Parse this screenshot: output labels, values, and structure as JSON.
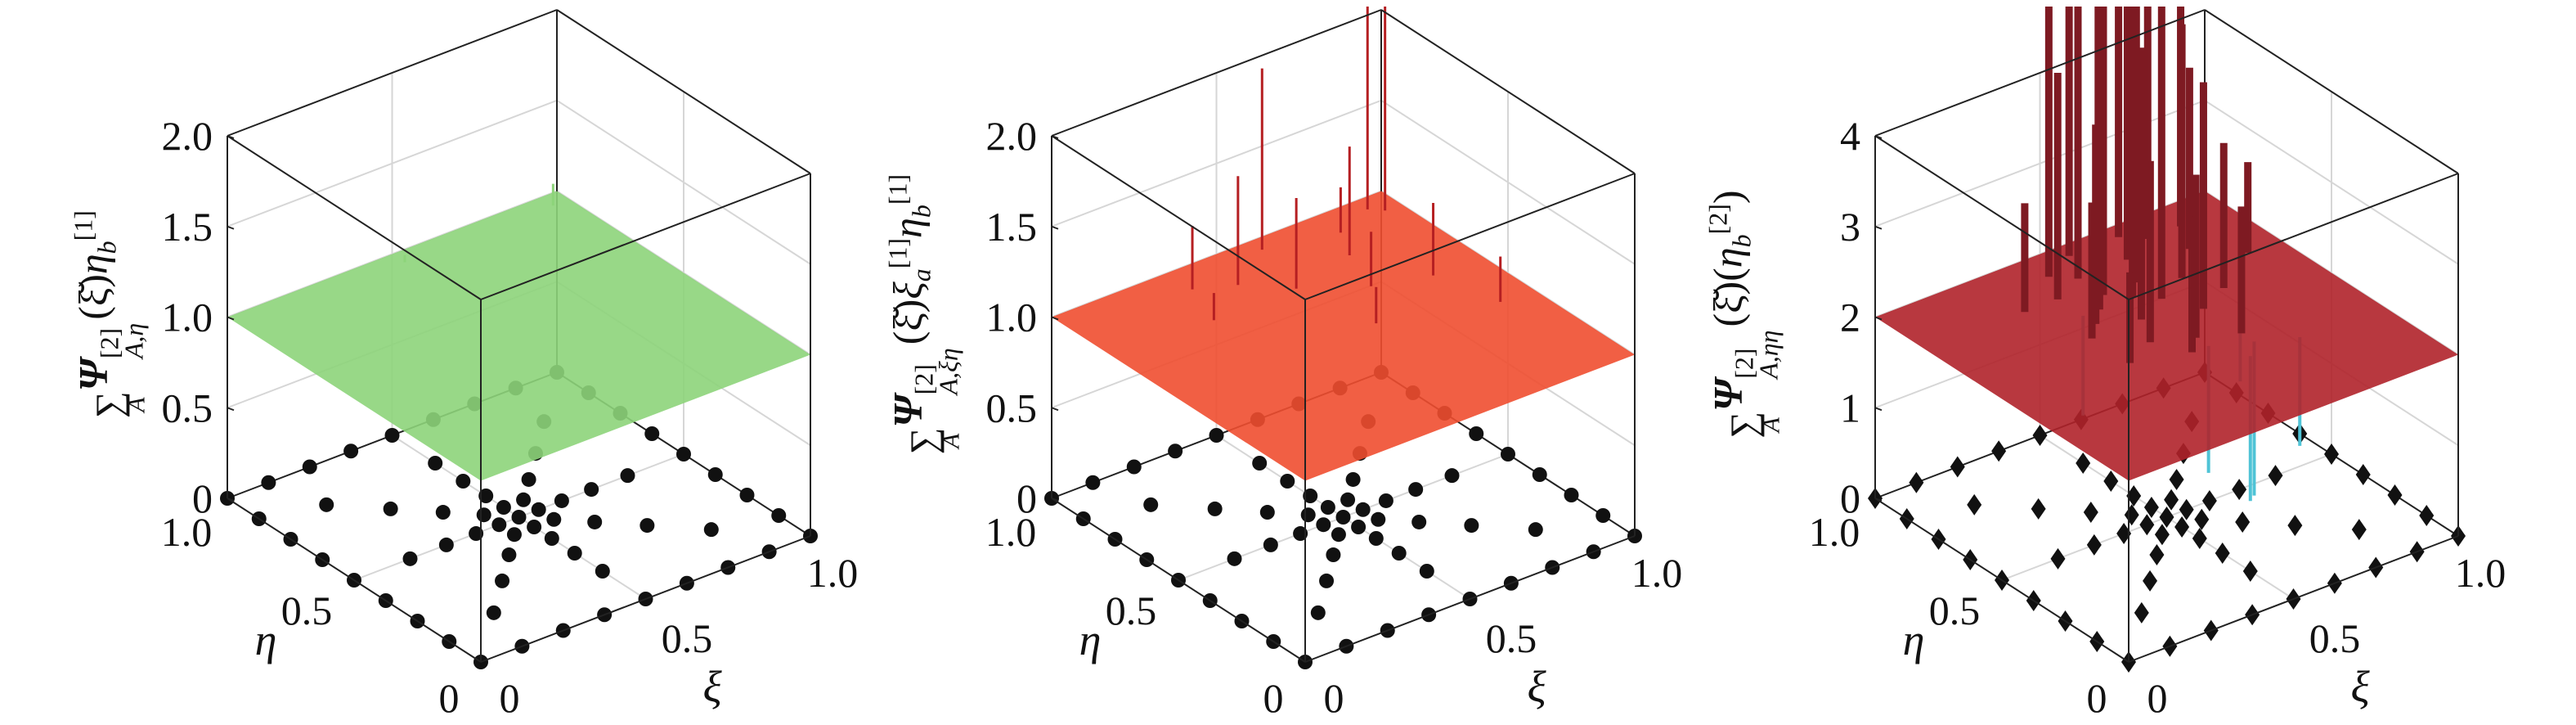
{
  "chart_data": [
    {
      "type": "surface3d",
      "ylabel": {
        "sum": "∑",
        "sum_sub": "A",
        "psi": "Ψ",
        "psi_sup": "[2]",
        "psi_sub": "A,η",
        "tail": [
          {
            "t": "(ξ̆)",
            "style": ""
          },
          {
            "t": "η",
            "style": "it"
          },
          {
            "t": "b",
            "style": "sub"
          },
          {
            "t": "[1]",
            "style": "sup"
          }
        ]
      },
      "xlabel": "ξ",
      "eta_label": "η",
      "xi_ticks": [
        "0",
        "0.5",
        "1.0"
      ],
      "eta_ticks": [
        "0",
        "0.5",
        "1.0"
      ],
      "z_ticks": [
        "0",
        "0.5",
        "1.0",
        "1.5",
        "2.0"
      ],
      "z_tick_values": [
        0,
        0.5,
        1.0,
        1.5,
        2.0
      ],
      "zlim": [
        0,
        2
      ],
      "xlim": [
        0,
        1
      ],
      "ylim": [
        0,
        1
      ],
      "surface_level": 1.0,
      "surface_color": "#8dd47a",
      "spike_color": "#8dd47a",
      "marker": "circle",
      "spikes": [
        [
          0.95,
          0.95,
          1.12
        ],
        [
          0.5,
          0.95,
          1.04
        ]
      ],
      "dips": []
    },
    {
      "type": "surface3d",
      "ylabel": {
        "sum": "∑",
        "sum_sub": "A",
        "psi": "Ψ",
        "psi_sup": "[2]",
        "psi_sub": "A,ξη",
        "tail": [
          {
            "t": "(ξ̆)",
            "style": ""
          },
          {
            "t": "ξ",
            "style": "it"
          },
          {
            "t": "a",
            "style": "sub"
          },
          {
            "t": "[1]",
            "style": "sup"
          },
          {
            "t": "η",
            "style": "it"
          },
          {
            "t": "b",
            "style": "sub"
          },
          {
            "t": "[1]",
            "style": "sup"
          }
        ]
      },
      "xlabel": "ξ",
      "eta_label": "η",
      "xi_ticks": [
        "0",
        "0.5",
        "1.0"
      ],
      "eta_ticks": [
        "0",
        "0.5",
        "1.0"
      ],
      "z_ticks": [
        "0",
        "0.5",
        "1.0",
        "1.5",
        "2.0"
      ],
      "z_tick_values": [
        0,
        0.5,
        1.0,
        1.5,
        2.0
      ],
      "zlim": [
        0,
        2
      ],
      "xlim": [
        0,
        1
      ],
      "ylim": [
        0,
        1
      ],
      "surface_level": 1.0,
      "surface_color": "#f04e30",
      "spike_color": "#b51f22",
      "marker": "circle",
      "spikes": [
        [
          0.92,
          0.95,
          2.3
        ],
        [
          0.95,
          0.92,
          2.2
        ],
        [
          0.6,
          0.95,
          2.0
        ],
        [
          0.35,
          0.9,
          1.35
        ],
        [
          0.45,
          0.85,
          1.6
        ],
        [
          0.55,
          0.75,
          1.5
        ],
        [
          0.75,
          0.8,
          1.6
        ],
        [
          0.85,
          0.6,
          1.4
        ],
        [
          0.9,
          0.4,
          1.25
        ],
        [
          0.6,
          0.5,
          1.2
        ],
        [
          0.3,
          0.75,
          1.15
        ],
        [
          0.7,
          0.65,
          1.3
        ],
        [
          0.8,
          0.9,
          1.25
        ]
      ],
      "dips": []
    },
    {
      "type": "surface3d",
      "ylabel": {
        "sum": "∑",
        "sum_sub": "A",
        "psi": "Ψ",
        "psi_sup": "[2]",
        "psi_sub": "A,ηη",
        "tail": [
          {
            "t": "(ξ̆)(",
            "style": ""
          },
          {
            "t": "η",
            "style": "it"
          },
          {
            "t": "b",
            "style": "sub"
          },
          {
            "t": "[2]",
            "style": "sup"
          },
          {
            "t": ")",
            "style": ""
          }
        ]
      },
      "xlabel": "ξ",
      "eta_label": "η",
      "xi_ticks": [
        "0",
        "0.5",
        "1.0"
      ],
      "eta_ticks": [
        "0",
        "0.5",
        "1.0"
      ],
      "z_ticks": [
        "0",
        "1",
        "2",
        "3",
        "4"
      ],
      "z_tick_values": [
        0,
        1,
        2,
        3,
        4
      ],
      "zlim": [
        0,
        4
      ],
      "xlim": [
        0,
        1
      ],
      "ylim": [
        0,
        1
      ],
      "surface_level": 2.0,
      "surface_color": "#b0222a",
      "spike_color": "#7e1a22",
      "marker": "diamond",
      "spikes": [
        [
          0.55,
          0.95,
          6
        ],
        [
          0.6,
          0.9,
          6
        ],
        [
          0.5,
          0.85,
          5.5
        ],
        [
          0.45,
          0.9,
          5
        ],
        [
          0.65,
          0.85,
          6
        ],
        [
          0.7,
          0.95,
          6
        ],
        [
          0.75,
          0.9,
          5
        ],
        [
          0.4,
          0.8,
          4.5
        ],
        [
          0.55,
          0.7,
          6
        ],
        [
          0.6,
          0.65,
          5.5
        ],
        [
          0.5,
          0.6,
          5
        ],
        [
          0.65,
          0.55,
          4.5
        ],
        [
          0.45,
          0.5,
          4
        ],
        [
          0.35,
          0.6,
          3.5
        ],
        [
          0.7,
          0.7,
          4.8
        ],
        [
          0.8,
          0.8,
          4
        ],
        [
          0.85,
          0.9,
          4.5
        ],
        [
          0.3,
          0.8,
          3.2
        ],
        [
          0.55,
          0.45,
          3.8
        ],
        [
          0.4,
          0.65,
          4.2
        ],
        [
          0.6,
          0.75,
          5.8
        ],
        [
          0.5,
          0.75,
          5.2
        ],
        [
          0.75,
          0.6,
          3.6
        ],
        [
          0.9,
          0.7,
          3.0
        ],
        [
          0.35,
          0.45,
          3.0
        ],
        [
          0.65,
          0.4,
          3.4
        ],
        [
          0.5,
          0.4,
          3.5
        ],
        [
          0.45,
          0.7,
          4.6
        ]
      ],
      "dips": [
        [
          0.6,
          0.3,
          0.4
        ],
        [
          0.65,
          0.35,
          0.3
        ],
        [
          0.55,
          0.4,
          0.6
        ],
        [
          0.75,
          0.3,
          0.8
        ],
        [
          0.4,
          0.7,
          0.9
        ],
        [
          0.8,
          0.6,
          0.9
        ]
      ]
    }
  ],
  "nodes": [
    [
      0,
      0
    ],
    [
      0.125,
      0
    ],
    [
      0.25,
      0
    ],
    [
      0.375,
      0
    ],
    [
      0.5,
      0
    ],
    [
      0.625,
      0
    ],
    [
      0.75,
      0
    ],
    [
      0.875,
      0
    ],
    [
      1,
      0
    ],
    [
      0,
      1
    ],
    [
      0.125,
      1
    ],
    [
      0.25,
      1
    ],
    [
      0.375,
      1
    ],
    [
      0.5,
      1
    ],
    [
      0.625,
      1
    ],
    [
      0.75,
      1
    ],
    [
      0.875,
      1
    ],
    [
      1,
      1
    ],
    [
      0,
      0.125
    ],
    [
      0,
      0.25
    ],
    [
      0,
      0.375
    ],
    [
      0,
      0.5
    ],
    [
      0,
      0.625
    ],
    [
      0,
      0.75
    ],
    [
      0,
      0.875
    ],
    [
      1,
      0.125
    ],
    [
      1,
      0.25
    ],
    [
      1,
      0.375
    ],
    [
      1,
      0.5
    ],
    [
      1,
      0.625
    ],
    [
      1,
      0.75
    ],
    [
      1,
      0.875
    ],
    [
      0.5,
      0.5
    ],
    [
      0.44,
      0.44
    ],
    [
      0.5,
      0.44
    ],
    [
      0.56,
      0.44
    ],
    [
      0.44,
      0.5
    ],
    [
      0.56,
      0.5
    ],
    [
      0.44,
      0.56
    ],
    [
      0.5,
      0.56
    ],
    [
      0.56,
      0.56
    ],
    [
      0.37,
      0.37
    ],
    [
      0.5,
      0.37
    ],
    [
      0.63,
      0.37
    ],
    [
      0.37,
      0.5
    ],
    [
      0.63,
      0.5
    ],
    [
      0.37,
      0.63
    ],
    [
      0.5,
      0.63
    ],
    [
      0.63,
      0.63
    ],
    [
      0.28,
      0.28
    ],
    [
      0.5,
      0.28
    ],
    [
      0.72,
      0.28
    ],
    [
      0.28,
      0.5
    ],
    [
      0.72,
      0.5
    ],
    [
      0.28,
      0.72
    ],
    [
      0.5,
      0.72
    ],
    [
      0.72,
      0.72
    ],
    [
      0.17,
      0.17
    ],
    [
      0.5,
      0.17
    ],
    [
      0.83,
      0.17
    ],
    [
      0.17,
      0.5
    ],
    [
      0.83,
      0.5
    ],
    [
      0.17,
      0.83
    ],
    [
      0.5,
      0.83
    ],
    [
      0.83,
      0.83
    ]
  ],
  "colors": {
    "axis": "#222222",
    "grid": "#d6d6d6",
    "marker": "#111111"
  }
}
